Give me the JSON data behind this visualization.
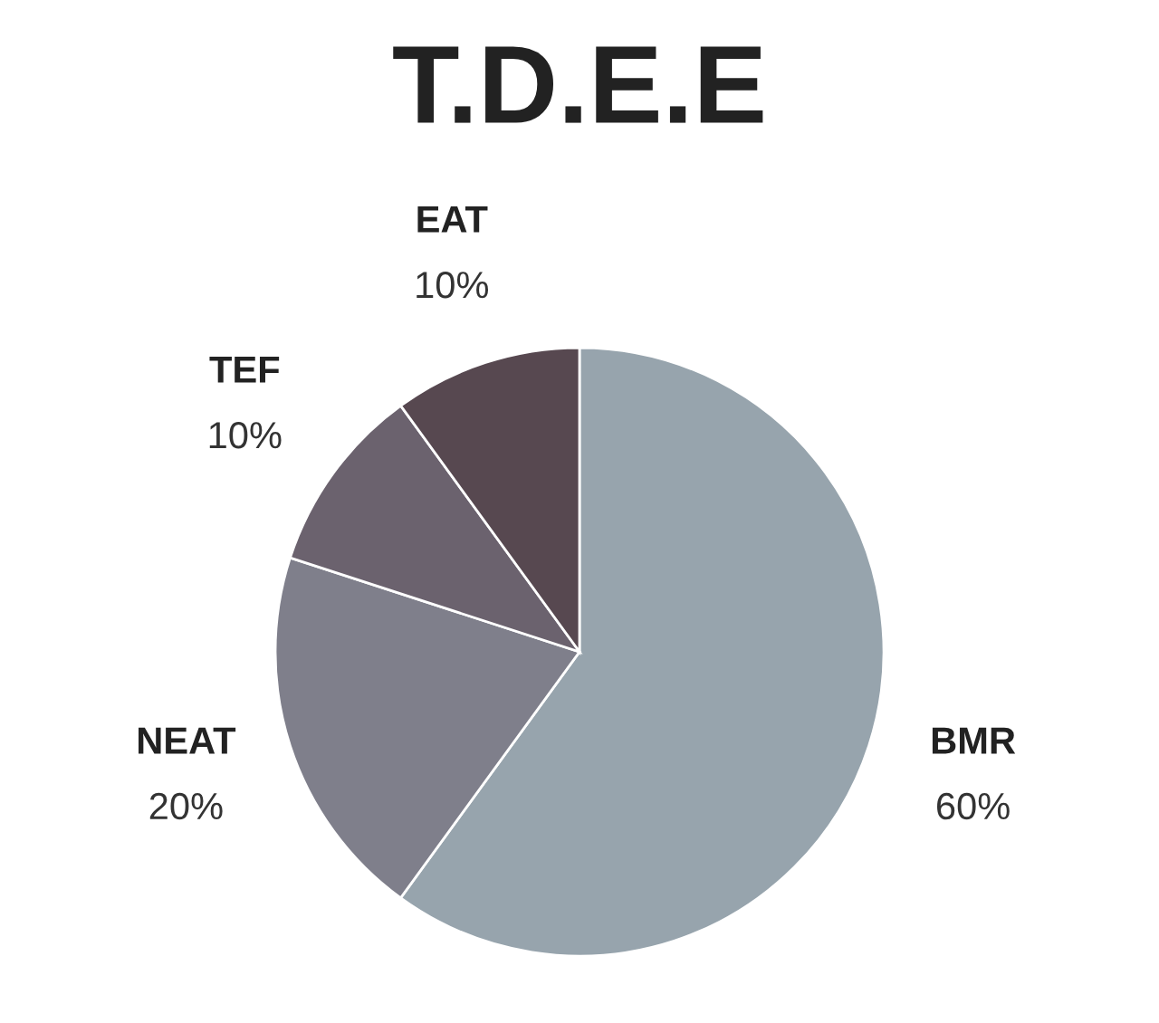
{
  "chart_data": {
    "type": "pie",
    "title": "T.D.E.E",
    "categories": [
      "BMR",
      "NEAT",
      "TEF",
      "EAT"
    ],
    "values": [
      60,
      20,
      10,
      10
    ],
    "value_labels": [
      "60%",
      "20%",
      "10%",
      "10%"
    ],
    "colors": [
      "#97a4ad",
      "#7f7f8b",
      "#6b626e",
      "#574850"
    ],
    "legend": false
  }
}
